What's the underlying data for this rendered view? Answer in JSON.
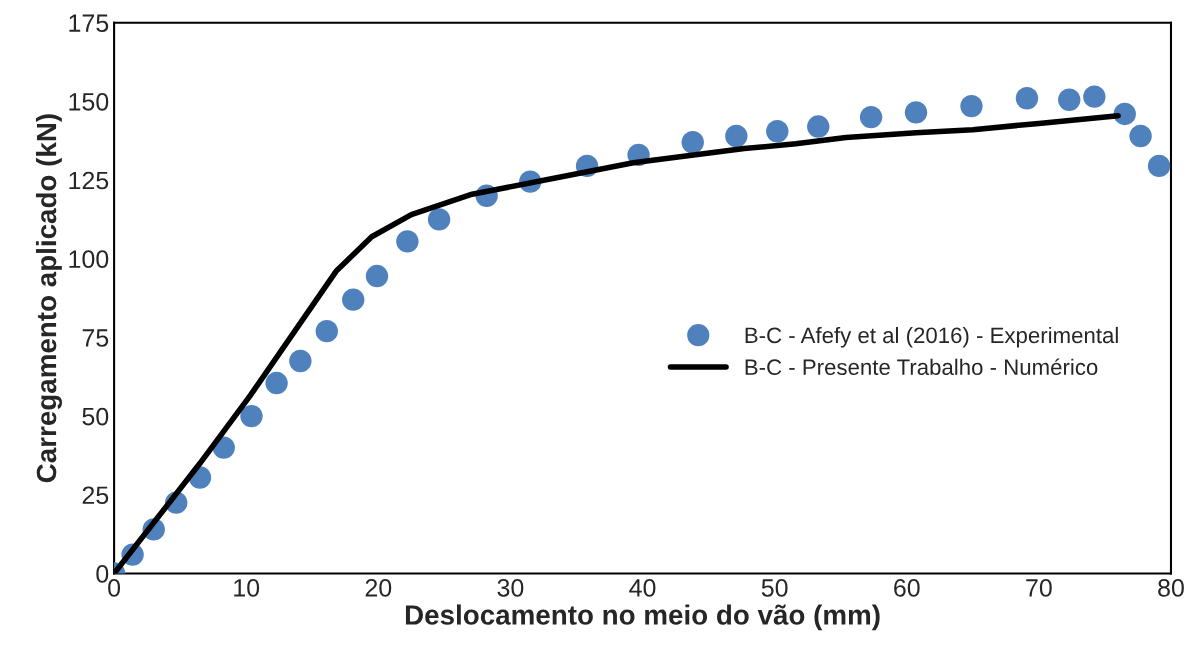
{
  "chart_data": {
    "type": "scatter",
    "xlabel": "Deslocamento no meio do vão (mm)",
    "ylabel": "Carregamento aplicado (kN)",
    "xlim": [
      0,
      80
    ],
    "xticks": [
      0,
      10,
      20,
      30,
      40,
      50,
      60,
      70,
      80
    ],
    "ylim": [
      0,
      175
    ],
    "yticks": [
      0,
      25,
      50,
      75,
      100,
      125,
      150,
      175
    ],
    "grid": false,
    "legend": "right",
    "series": [
      {
        "name": "B-C - Afefy et al (2016) - Experimental",
        "marker": "circle",
        "color": "#4f81bd",
        "x": [
          0,
          1.4,
          3.0,
          4.7,
          6.5,
          8.3,
          10.4,
          12.3,
          14.1,
          16.1,
          18.1,
          19.9,
          22.2,
          24.6,
          28.2,
          31.5,
          35.8,
          39.7,
          43.8,
          47.1,
          50.2,
          53.3,
          57.3,
          60.7,
          64.9,
          69.1,
          72.3,
          74.2,
          76.5,
          77.7,
          79.1
        ],
        "values": [
          0,
          6,
          14,
          22.5,
          30.5,
          40,
          50,
          60.5,
          67.5,
          77,
          87,
          94.5,
          105.5,
          112.5,
          120,
          124.5,
          129.5,
          133,
          137,
          139,
          140.5,
          142,
          145,
          146.5,
          148.5,
          151,
          150.5,
          151.5,
          146,
          139,
          129.5
        ]
      },
      {
        "name": "B-C - Presente Trabalho - Numérico",
        "type": "line",
        "marker": "none",
        "line_style": "solid",
        "color": "#000000",
        "x": [
          0,
          6.5,
          10.3,
          16.8,
          19.5,
          22.5,
          27.1,
          33.2,
          39.3,
          47.7,
          51.6,
          55.4,
          60.7,
          65,
          70,
          76
        ],
        "values": [
          0,
          35,
          56.5,
          96,
          107,
          114,
          120.5,
          125.5,
          130.5,
          135,
          136.5,
          138.5,
          140,
          141,
          143,
          145.4
        ]
      }
    ]
  }
}
